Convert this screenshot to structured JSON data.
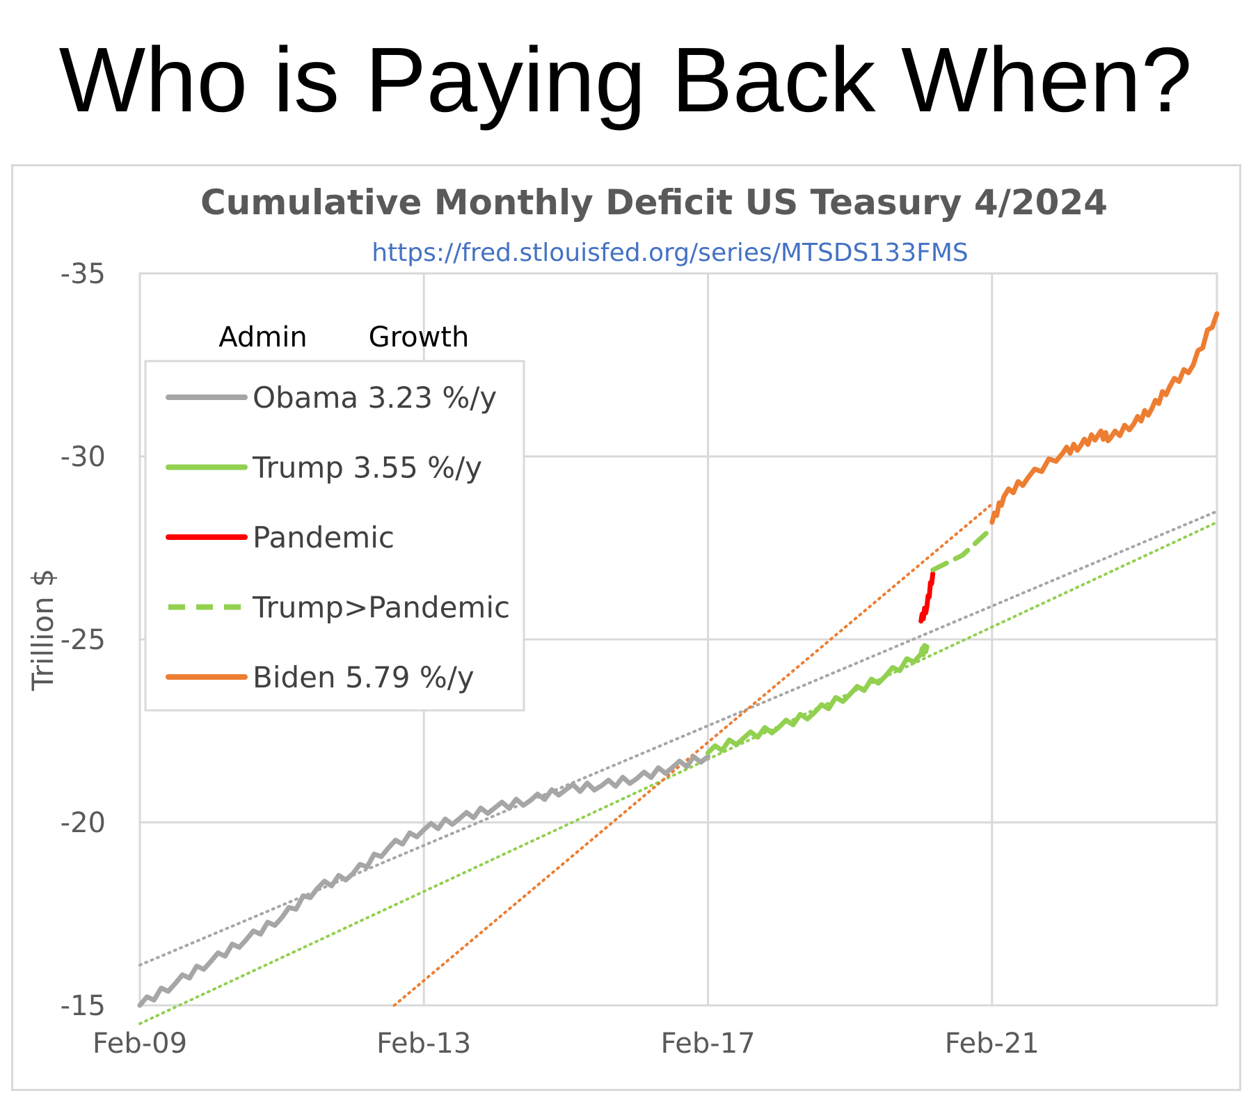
{
  "headline": "Who is Paying Back When?",
  "chart_data": {
    "type": "line",
    "title": "Cumulative Monthly Deficit US Teasury 4/2024",
    "subtitle": "https://fred.stlouisfed.org/series/MTSDS133FMS",
    "ylabel": "Trillion $",
    "xlabel": "",
    "ylim": [
      -15,
      -35
    ],
    "y_ticks": [
      -35,
      -30,
      -25,
      -20,
      -15
    ],
    "y_tick_labels": [
      "-35",
      "-30",
      "-25",
      "-20",
      "-15"
    ],
    "x_range": [
      "2009-02",
      "2024-04"
    ],
    "x_ticks": [
      "2009-02",
      "2013-02",
      "2017-02",
      "2021-02"
    ],
    "x_tick_labels": [
      "Feb-09",
      "Feb-13",
      "Feb-17",
      "Feb-21"
    ],
    "grid": true,
    "legend": {
      "placement": "top-left",
      "header_admin": "Admin",
      "header_growth": "Growth",
      "entries": [
        {
          "label": "Obama 3.23 %/y",
          "color": "#a6a6a6",
          "style": "solid"
        },
        {
          "label": "Trump 3.55 %/y",
          "color": "#92d050",
          "style": "solid"
        },
        {
          "label": "Pandemic",
          "color": "#ff0000",
          "style": "solid"
        },
        {
          "label": "Trump>Pandemic",
          "color": "#92d050",
          "style": "dashed"
        },
        {
          "label": "Biden 5.79 %/y",
          "color": "#ed7d31",
          "style": "solid"
        }
      ]
    },
    "series": [
      {
        "name": "Obama",
        "color": "#a6a6a6",
        "style": "solid",
        "points": [
          [
            "2009-02",
            -15.0
          ],
          [
            "2009-08",
            -15.6
          ],
          [
            "2010-02",
            -16.2
          ],
          [
            "2010-08",
            -16.8
          ],
          [
            "2011-02",
            -17.4
          ],
          [
            "2011-08",
            -18.2
          ],
          [
            "2012-02",
            -18.6
          ],
          [
            "2012-08",
            -19.3
          ],
          [
            "2013-02",
            -19.8
          ],
          [
            "2013-08",
            -20.1
          ],
          [
            "2014-02",
            -20.4
          ],
          [
            "2014-08",
            -20.6
          ],
          [
            "2015-02",
            -20.9
          ],
          [
            "2015-08",
            -21.0
          ],
          [
            "2016-02",
            -21.2
          ],
          [
            "2016-08",
            -21.5
          ],
          [
            "2017-02",
            -21.8
          ]
        ]
      },
      {
        "name": "Trump",
        "color": "#92d050",
        "style": "solid",
        "points": [
          [
            "2017-02",
            -21.9
          ],
          [
            "2017-08",
            -22.3
          ],
          [
            "2018-02",
            -22.6
          ],
          [
            "2018-08",
            -23.0
          ],
          [
            "2019-02",
            -23.5
          ],
          [
            "2019-08",
            -24.0
          ],
          [
            "2020-02",
            -24.6
          ],
          [
            "2020-03",
            -24.8
          ]
        ]
      },
      {
        "name": "Pandemic",
        "color": "#ff0000",
        "style": "solid",
        "points": [
          [
            "2020-02",
            -25.5
          ],
          [
            "2020-03",
            -25.9
          ],
          [
            "2020-04",
            -26.8
          ]
        ]
      },
      {
        "name": "Trump>Pandemic",
        "color": "#92d050",
        "style": "dashed",
        "points": [
          [
            "2020-04",
            -26.9
          ],
          [
            "2020-09",
            -27.3
          ],
          [
            "2021-01",
            -27.9
          ]
        ]
      },
      {
        "name": "Biden",
        "color": "#ed7d31",
        "style": "solid",
        "points": [
          [
            "2021-02",
            -28.2
          ],
          [
            "2021-04",
            -28.9
          ],
          [
            "2021-08",
            -29.4
          ],
          [
            "2022-02",
            -30.1
          ],
          [
            "2022-05",
            -30.3
          ],
          [
            "2022-08",
            -30.6
          ],
          [
            "2022-10",
            -30.5
          ],
          [
            "2023-02",
            -30.9
          ],
          [
            "2023-05",
            -31.3
          ],
          [
            "2023-08",
            -31.9
          ],
          [
            "2023-12",
            -32.5
          ],
          [
            "2024-04",
            -33.9
          ]
        ]
      }
    ],
    "trendlines": [
      {
        "of": "Obama",
        "color": "#a6a6a6",
        "style": "dotted",
        "points": [
          [
            "2009-02",
            -16.1
          ],
          [
            "2024-04",
            -28.5
          ]
        ]
      },
      {
        "of": "Trump",
        "color": "#92d050",
        "style": "dotted",
        "points": [
          [
            "2009-02",
            -14.5
          ],
          [
            "2024-04",
            -28.2
          ]
        ]
      },
      {
        "of": "Biden",
        "color": "#ed7d31",
        "style": "dotted",
        "points": [
          [
            "2012-09",
            -15.0
          ],
          [
            "2021-02",
            -28.7
          ]
        ]
      }
    ],
    "colors": {
      "gridline": "#d9d9d9",
      "tick_label": "#595959",
      "title": "#595959",
      "subtitle": "#4472c4",
      "legend_text": "#404040"
    }
  }
}
